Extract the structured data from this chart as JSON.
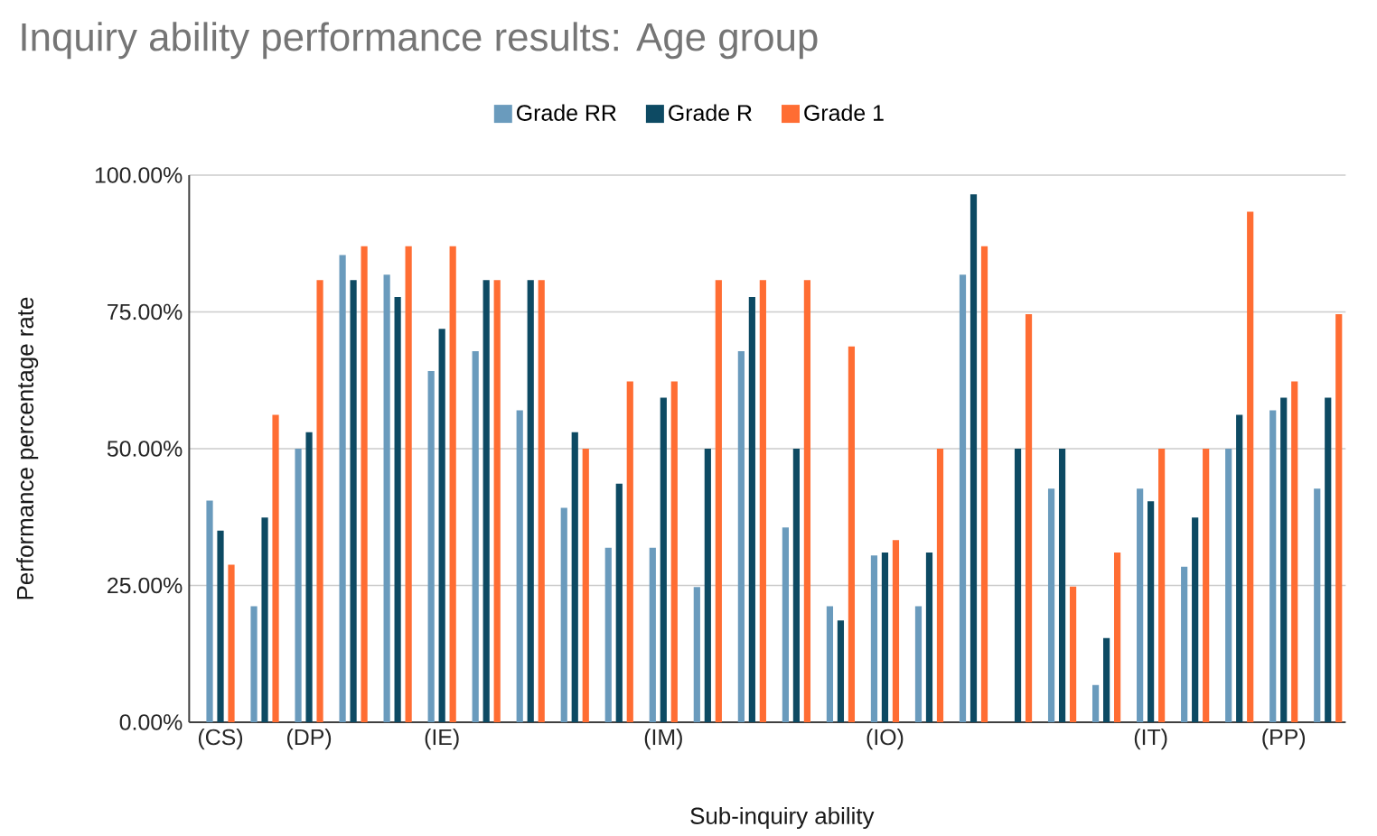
{
  "chart_data": {
    "type": "bar",
    "title": "Inquiry ability performance results: Age group",
    "xlabel": "Sub-inquiry ability",
    "ylabel": "Performance percentage rate",
    "categories": [
      "(CS)",
      null,
      "(DP)",
      null,
      null,
      "(IE)",
      null,
      null,
      null,
      null,
      "(IM)",
      null,
      null,
      null,
      null,
      "(IO)",
      null,
      null,
      null,
      null,
      null,
      "(IT)",
      null,
      null,
      "(PP)",
      null
    ],
    "series": [
      {
        "name": "Grade RR",
        "color": "#6a9bbd",
        "values": [
          40.5,
          21.2,
          50,
          85.4,
          81.8,
          64.2,
          67.8,
          57,
          39.2,
          31.9,
          31.9,
          24.7,
          67.8,
          35.6,
          21.2,
          30.5,
          21.2,
          81.8,
          0,
          42.7,
          6.8,
          42.7,
          28.4,
          50,
          57,
          42.7
        ]
      },
      {
        "name": "Grade R",
        "color": "#0d4a63",
        "values": [
          35,
          37.4,
          53,
          80.8,
          77.7,
          71.9,
          80.8,
          80.8,
          53,
          43.6,
          59.3,
          50,
          77.7,
          50,
          18.6,
          31,
          31,
          96.5,
          50,
          50,
          15.4,
          40.4,
          37.4,
          56.2,
          59.3,
          59.3
        ]
      },
      {
        "name": "Grade 1",
        "color": "#ff6d33",
        "values": [
          28.8,
          56.2,
          80.8,
          87,
          87,
          87,
          80.8,
          80.8,
          50,
          62.3,
          62.3,
          80.8,
          80.8,
          80.8,
          68.7,
          33.3,
          50,
          87,
          74.6,
          24.8,
          31,
          50,
          50,
          93.3,
          62.3,
          74.6
        ]
      }
    ],
    "ylim": [
      0,
      100
    ],
    "yticks": [
      {
        "value": 0,
        "label": "0.00%"
      },
      {
        "value": 25,
        "label": "25.00%"
      },
      {
        "value": 50,
        "label": "50.00%"
      },
      {
        "value": 75,
        "label": "75.00%"
      },
      {
        "value": 100,
        "label": "100.00%"
      }
    ],
    "grid": "y",
    "legend": "top"
  }
}
